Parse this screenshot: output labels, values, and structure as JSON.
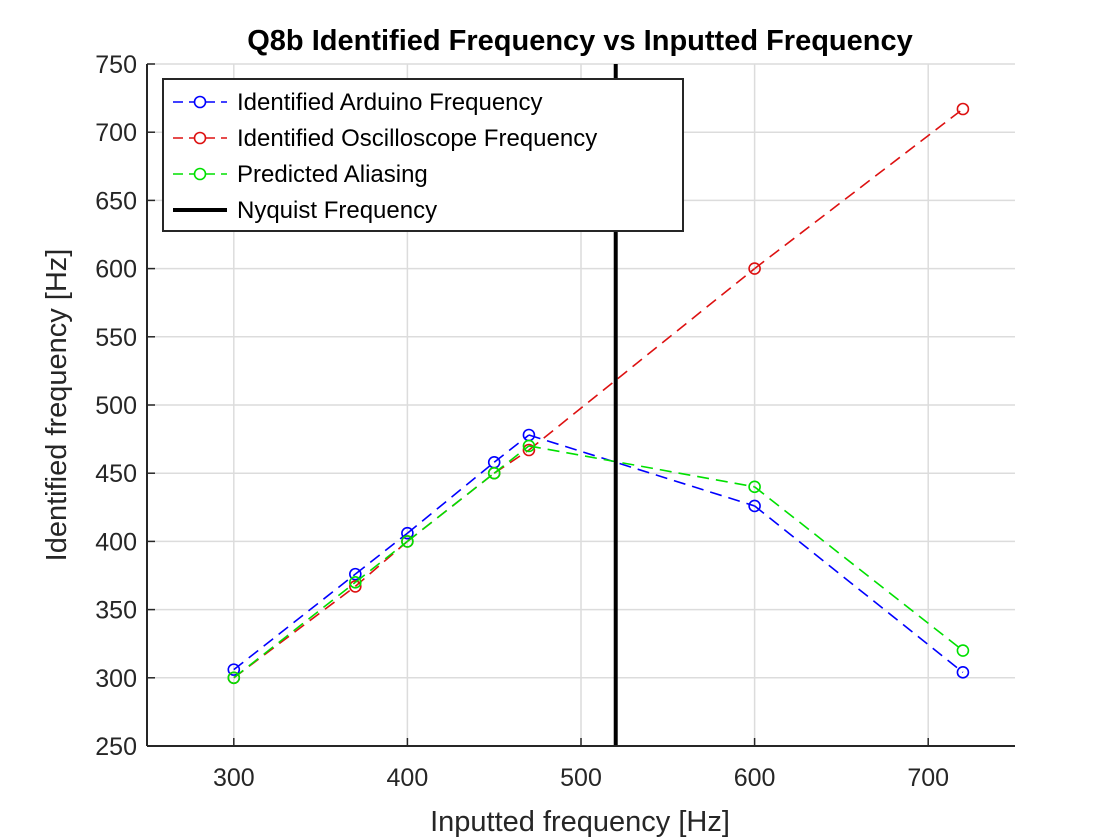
{
  "chart_data": {
    "type": "line",
    "title": "Q8b Identified Frequency vs Inputted Frequency",
    "xlabel": "Inputted frequency [Hz]",
    "ylabel": "Identified frequency [Hz]",
    "xlim": [
      250,
      750
    ],
    "ylim": [
      250,
      750
    ],
    "xticks": [
      "300",
      "400",
      "500",
      "600",
      "700"
    ],
    "yticks": [
      "250",
      "300",
      "350",
      "400",
      "450",
      "500",
      "550",
      "600",
      "650",
      "700",
      "750"
    ],
    "grid": true,
    "legend_position": "top-left",
    "series": [
      {
        "name": "Identified Arduino Frequency",
        "color": "#0000ff",
        "style": "dashed-circle",
        "x": [
          300,
          370,
          400,
          450,
          470,
          600,
          720
        ],
        "y": [
          306,
          376,
          406,
          458,
          478,
          426,
          304
        ]
      },
      {
        "name": "Identified Oscilloscope Frequency",
        "color": "#dd1111",
        "style": "dashed-circle",
        "x": [
          300,
          370,
          400,
          450,
          470,
          600,
          720
        ],
        "y": [
          300,
          367,
          400,
          450,
          467,
          600,
          717
        ]
      },
      {
        "name": "Predicted Aliasing",
        "color": "#00e000",
        "style": "dashed-circle",
        "x": [
          300,
          370,
          400,
          450,
          470,
          600,
          720
        ],
        "y": [
          300,
          370,
          400,
          450,
          470,
          440,
          320
        ]
      },
      {
        "name": "Nyquist Frequency",
        "color": "#000000",
        "style": "solid-vertical",
        "x": [
          520,
          520
        ],
        "y": [
          250,
          750
        ]
      }
    ]
  }
}
